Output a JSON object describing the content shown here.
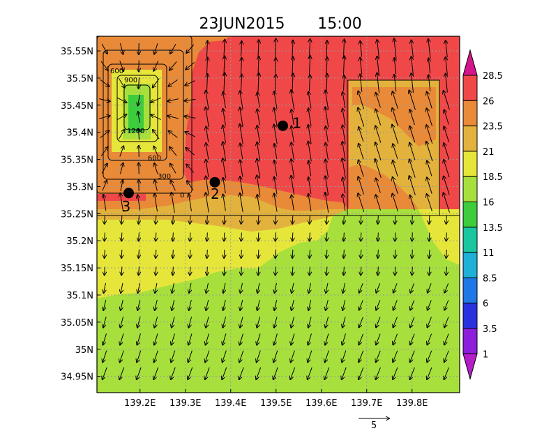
{
  "title": {
    "date": "23JUN2015",
    "time": "15:00"
  },
  "axes": {
    "x_ticks": [
      "139.2E",
      "139.3E",
      "139.4E",
      "139.5E",
      "139.6E",
      "139.7E",
      "139.8E"
    ],
    "x_values": [
      139.2,
      139.3,
      139.4,
      139.5,
      139.6,
      139.7,
      139.8
    ],
    "y_ticks": [
      "35.55N",
      "35.5N",
      "35.45N",
      "35.4N",
      "35.35N",
      "35.3N",
      "35.25N",
      "35.2N",
      "35.15N",
      "35.1N",
      "35.05N",
      "35N",
      "34.95N"
    ],
    "y_values": [
      35.55,
      35.5,
      35.45,
      35.4,
      35.35,
      35.3,
      35.25,
      35.2,
      35.15,
      35.1,
      35.05,
      35.0,
      34.95
    ],
    "lon_range": [
      139.105,
      139.905
    ],
    "lat_range": [
      34.92,
      35.577
    ],
    "grid": true
  },
  "colorbar": {
    "labels": [
      "28.5",
      "26",
      "23.5",
      "21",
      "18.5",
      "16",
      "13.5",
      "11",
      "8.5",
      "6",
      "3.5",
      "1"
    ],
    "colors": [
      "#d6148c",
      "#f04848",
      "#e88a38",
      "#e3b23c",
      "#e6e63a",
      "#a7e03c",
      "#3ccc3c",
      "#19c6a0",
      "#1fb0d8",
      "#1e78e6",
      "#2a32e0",
      "#8c1edc",
      "#b41ec8"
    ]
  },
  "contours": {
    "labels": [
      "600",
      "900",
      "1200",
      "600",
      "300",
      "0"
    ]
  },
  "stations": [
    {
      "id": "1",
      "lon": 139.515,
      "lat": 35.412
    },
    {
      "id": "2",
      "lon": 139.365,
      "lat": 35.308
    },
    {
      "id": "3",
      "lon": 139.175,
      "lat": 35.288
    }
  ],
  "reference_vector": {
    "label": "5"
  }
}
